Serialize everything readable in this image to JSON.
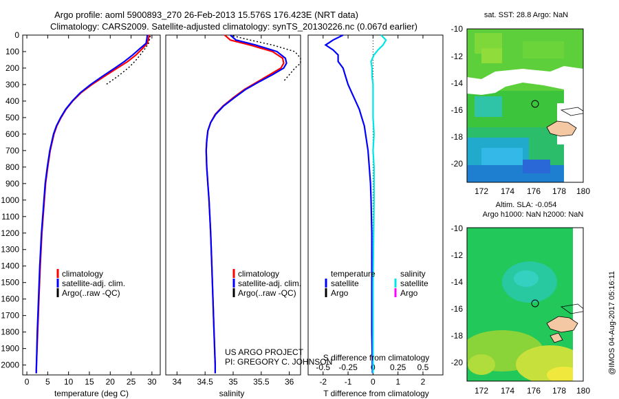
{
  "header": {
    "title_line1": "Argo profile: aoml 5900893_270 26-Feb-2013 15.576S 176.423E (NRT data)",
    "title_line2": "Climatology: CARS2009. Satellite-adjusted climatology: synTS_20130226.nc (0.067d earlier)"
  },
  "credits": {
    "project": "US ARGO PROJECT",
    "pi": "PI: GREGORY C. JOHNSON",
    "stamp": "@IMOS 04-Aug-2017 05:16:11"
  },
  "colors": {
    "climatology": "#ff0000",
    "satellite": "#0000ff",
    "argo": "#000000",
    "sal_satellite": "#00e5e5",
    "sal_argo": "#ff00ff",
    "land": "#f5c8a4"
  },
  "chart_data": [
    {
      "id": "temperature",
      "type": "line",
      "xlabel": "temperature (deg C)",
      "ylabel": "",
      "xlim": [
        -1,
        32
      ],
      "ylim": [
        0,
        2060
      ],
      "y_inverted": true,
      "xticks": [
        0,
        5,
        10,
        15,
        20,
        25,
        30
      ],
      "yticks": [
        0,
        100,
        200,
        300,
        400,
        500,
        600,
        700,
        800,
        900,
        1000,
        1100,
        1200,
        1300,
        1400,
        1500,
        1600,
        1700,
        1800,
        1900,
        2000
      ],
      "legend": {
        "placement": "lower-middle",
        "entries": [
          {
            "label": "climatology",
            "color": "#ff0000"
          },
          {
            "label": "satellite-adj. clim.",
            "color": "#0000ff"
          },
          {
            "label": "Argo(..raw -QC)",
            "color": "#000000"
          }
        ]
      },
      "series": [
        {
          "name": "climatology",
          "color": "#ff0000",
          "depth": [
            0,
            20,
            50,
            80,
            120,
            160,
            200,
            250,
            300,
            350,
            400,
            450,
            500,
            550,
            600,
            700,
            800,
            900,
            1000,
            1200,
            1400,
            1600,
            1800,
            2000,
            2050
          ],
          "values": [
            29.3,
            29.2,
            28.9,
            27.8,
            26.2,
            24.2,
            21.7,
            18.6,
            15.6,
            13.0,
            11.0,
            9.4,
            8.2,
            7.2,
            6.5,
            5.6,
            5.0,
            4.5,
            4.2,
            3.6,
            3.2,
            2.9,
            2.6,
            2.3,
            2.25
          ]
        },
        {
          "name": "satellite-adj. clim.",
          "color": "#0000ff",
          "depth": [
            0,
            20,
            50,
            80,
            120,
            160,
            200,
            250,
            300,
            350,
            400,
            450,
            500,
            550,
            600,
            700,
            800,
            900,
            1000,
            1200,
            1400,
            1600,
            1800,
            2000,
            2050
          ],
          "values": [
            28.9,
            28.8,
            28.6,
            27.2,
            25.4,
            23.4,
            21.1,
            18.1,
            15.3,
            12.8,
            10.9,
            9.3,
            8.1,
            7.1,
            6.4,
            5.5,
            4.9,
            4.4,
            4.1,
            3.5,
            3.1,
            2.8,
            2.5,
            2.3,
            2.25
          ]
        },
        {
          "name": "Argo(..raw -QC)",
          "color": "#000000",
          "dash": true,
          "depth": [
            5,
            20,
            50,
            80,
            120,
            160,
            200,
            250,
            300
          ],
          "values": [
            29.6,
            29.5,
            29.2,
            28.4,
            27.2,
            25.9,
            24.3,
            21.8,
            19.0
          ]
        }
      ]
    },
    {
      "id": "salinity",
      "type": "line",
      "xlabel": "salinity",
      "ylabel": "",
      "xlim": [
        33.8,
        36.2
      ],
      "ylim": [
        0,
        2060
      ],
      "y_inverted": true,
      "xticks": [
        34,
        34.5,
        35,
        35.5,
        36
      ],
      "legend": {
        "placement": "lower-middle",
        "entries": [
          {
            "label": "climatology",
            "color": "#ff0000"
          },
          {
            "label": "satellite-adj. clim.",
            "color": "#0000ff"
          },
          {
            "label": "Argo(..raw -QC)",
            "color": "#000000"
          }
        ]
      },
      "series": [
        {
          "name": "climatology",
          "color": "#ff0000",
          "depth": [
            0,
            30,
            60,
            100,
            140,
            170,
            200,
            240,
            280,
            330,
            380,
            430,
            480,
            530,
            580,
            640,
            700,
            800,
            900,
            1000,
            1200,
            1400,
            1600,
            1800,
            2000,
            2050
          ],
          "values": [
            34.85,
            34.95,
            35.3,
            35.7,
            35.88,
            35.9,
            35.85,
            35.65,
            35.45,
            35.2,
            35.0,
            34.82,
            34.68,
            34.6,
            34.55,
            34.53,
            34.52,
            34.53,
            34.55,
            34.57,
            34.6,
            34.62,
            34.64,
            34.66,
            34.68,
            34.68
          ]
        },
        {
          "name": "satellite-adj. clim.",
          "color": "#0000ff",
          "depth": [
            0,
            30,
            60,
            100,
            140,
            170,
            200,
            240,
            280,
            330,
            380,
            430,
            480,
            530,
            580,
            640,
            700,
            800,
            900,
            1000,
            1200,
            1400,
            1600,
            1800,
            2000,
            2050
          ],
          "values": [
            34.95,
            35.05,
            35.4,
            35.78,
            35.93,
            35.95,
            35.9,
            35.7,
            35.48,
            35.22,
            35.02,
            34.83,
            34.69,
            34.6,
            34.55,
            34.53,
            34.52,
            34.53,
            34.55,
            34.57,
            34.6,
            34.62,
            34.64,
            34.66,
            34.68,
            34.68
          ]
        },
        {
          "name": "Argo(..raw -QC)",
          "color": "#000000",
          "dash": true,
          "depth": [
            5,
            30,
            60,
            100,
            140,
            170,
            200,
            240,
            280
          ],
          "values": [
            35.0,
            35.3,
            35.7,
            36.1,
            36.2,
            36.2,
            36.1,
            36.0,
            35.9
          ]
        }
      ]
    },
    {
      "id": "difference",
      "type": "line",
      "xlabel": "T difference from climatology",
      "xlabel_top": "S difference from climatology",
      "xlim": [
        -2.6,
        2.8
      ],
      "ylim": [
        0,
        2060
      ],
      "y_inverted": true,
      "xticks": [
        -2,
        -1,
        0,
        1,
        2
      ],
      "xticks_top": [
        -0.5,
        -0.25,
        0,
        0.25,
        0.5
      ],
      "legend": {
        "placement": "lower-middle",
        "temperature_title": "temperature",
        "salinity_title": "salinity",
        "entries_t": [
          {
            "label": "satellite",
            "color": "#0000ff"
          },
          {
            "label": "Argo",
            "color": "#000000"
          }
        ],
        "entries_s": [
          {
            "label": "satellite",
            "color": "#00e5e5"
          },
          {
            "label": "Argo",
            "color": "#ff00ff"
          }
        ]
      },
      "series": [
        {
          "name": "T satellite",
          "color": "#0000ff",
          "depth": [
            0,
            30,
            60,
            90,
            120,
            160,
            200,
            250,
            300,
            350,
            400,
            450,
            500,
            550,
            600,
            700,
            800,
            900,
            1000,
            1200,
            1500,
            1800,
            2050
          ],
          "values": [
            -1.2,
            -1.6,
            -1.9,
            -1.6,
            -1.4,
            -1.4,
            -1.2,
            -1.1,
            -1.0,
            -0.85,
            -0.7,
            -0.55,
            -0.45,
            -0.35,
            -0.3,
            -0.2,
            -0.15,
            -0.1,
            -0.08,
            -0.05,
            -0.05,
            -0.05,
            -0.02
          ]
        },
        {
          "name": "S satellite",
          "color": "#00e5e5",
          "scale": "top",
          "depth": [
            0,
            30,
            60,
            90,
            120,
            160,
            200,
            250,
            300,
            400,
            500,
            600,
            700,
            800,
            1000,
            1500,
            2050
          ],
          "values": [
            0.08,
            0.13,
            0.1,
            0.05,
            0.01,
            -0.02,
            -0.01,
            -0.01,
            0.0,
            0.0,
            0.0,
            0.01,
            0.0,
            0.01,
            0.01,
            0.0,
            0.0
          ]
        }
      ]
    }
  ],
  "maps": {
    "sst": {
      "title": "sat. SST: 28.8 Argo: NaN",
      "xticks": [
        "172",
        "174",
        "176",
        "178",
        "180"
      ],
      "yticks": [
        "-10",
        "-12",
        "-14",
        "-16",
        "-18",
        "-20"
      ]
    },
    "sla": {
      "title_line1": "Altim. SLA: -0.054",
      "title_line2": "Argo h1000: NaN h2000: NaN",
      "xticks": [
        "172",
        "174",
        "176",
        "178",
        "180"
      ],
      "yticks": [
        "-10",
        "-12",
        "-14",
        "-16",
        "-18",
        "-20"
      ]
    }
  }
}
